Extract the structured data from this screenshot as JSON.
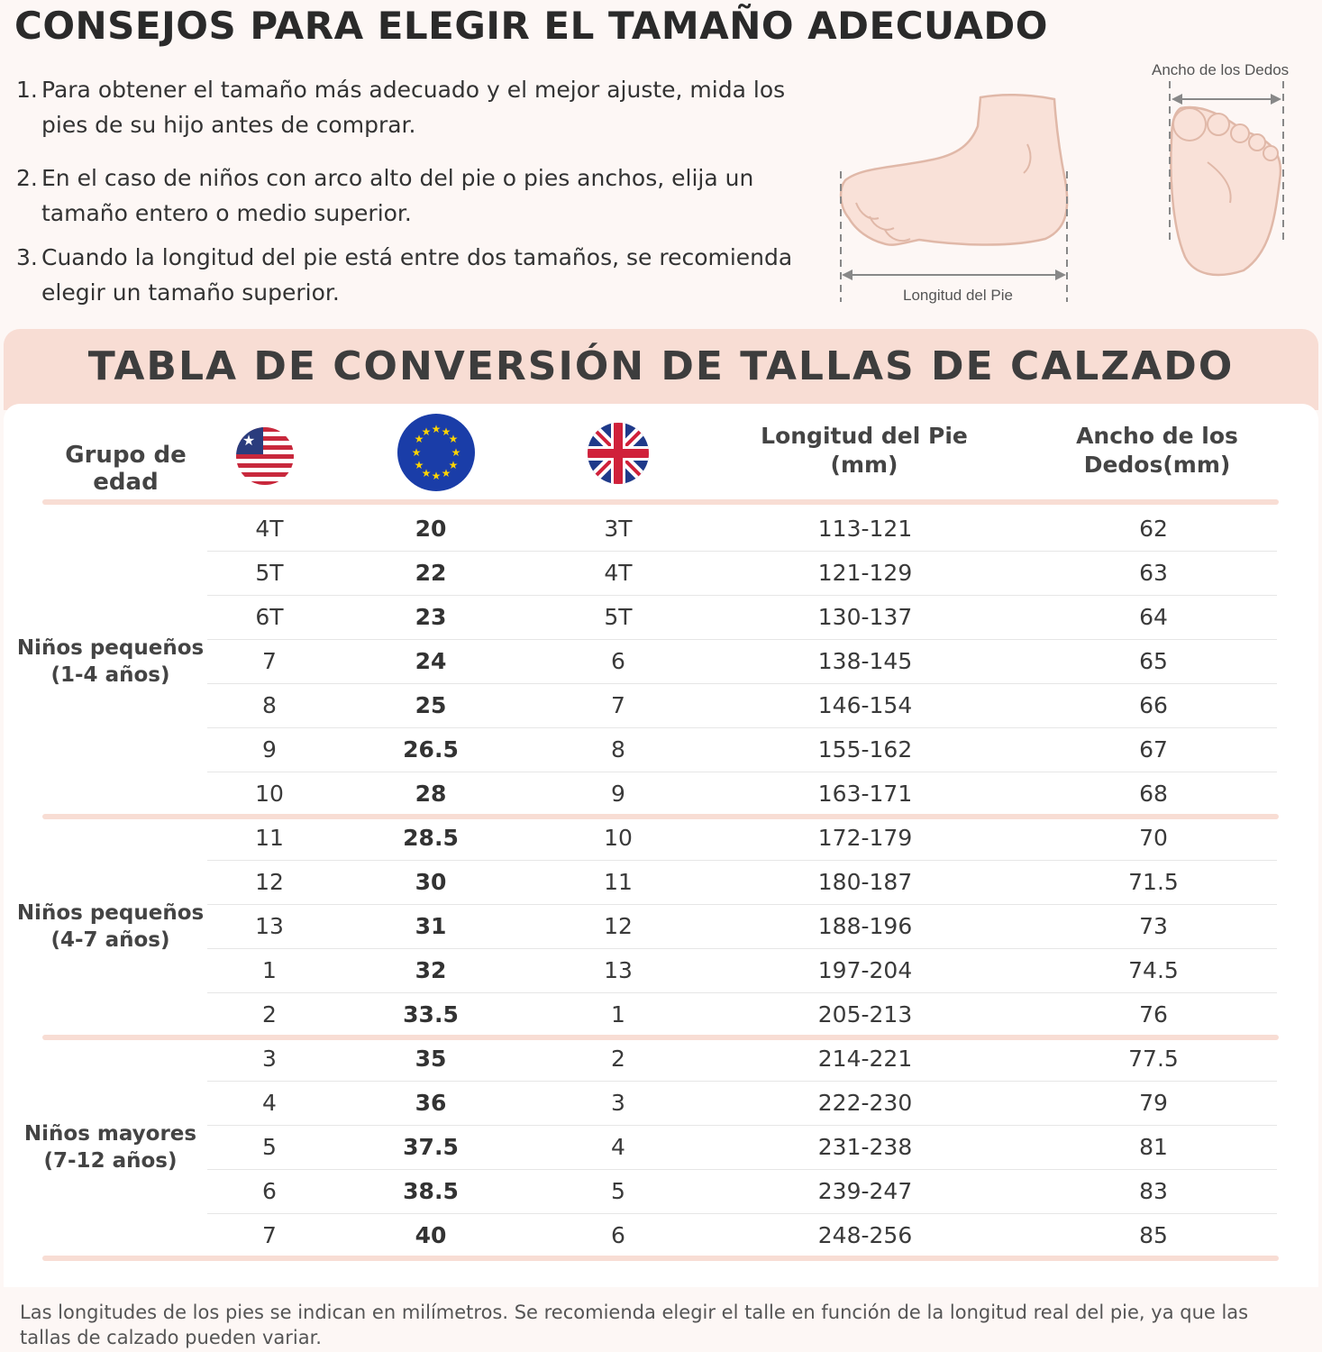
{
  "title": "CONSEJOS PARA ELEGIR EL TAMAÑO ADECUADO",
  "tips": [
    {
      "num": "1.",
      "text": "Para obtener el tamaño más adecuado y el mejor ajuste, mida los pies de su hijo antes de comprar."
    },
    {
      "num": "2.",
      "text": "En el caso de niños con arco alto del pie o pies anchos, elija un tamaño entero o medio superior."
    },
    {
      "num": "3.",
      "text": "Cuando la longitud del pie está entre dos tamaños, se recomienda elegir un tamaño superior."
    }
  ],
  "illustration": {
    "foot_length_label": "Longitud del Pie",
    "toe_width_label": "Ancho de los Dedos"
  },
  "table": {
    "heading": "TABLA DE CONVERSIÓN DE TALLAS DE CALZADO",
    "headers": {
      "age_group": "Grupo de edad",
      "us_flag": "us-flag-icon",
      "eu_flag": "eu-flag-icon",
      "uk_flag": "uk-flag-icon",
      "foot_length": "Longitud del Pie\n(mm)",
      "toe_width": "Ancho de los\nDedos(mm)"
    },
    "groups": [
      {
        "label": "Niños pequeños\n(1-4 años)",
        "rows": [
          [
            "4T",
            "20",
            "3T",
            "113-121",
            "62"
          ],
          [
            "5T",
            "22",
            "4T",
            "121-129",
            "63"
          ],
          [
            "6T",
            "23",
            "5T",
            "130-137",
            "64"
          ],
          [
            "7",
            "24",
            "6",
            "138-145",
            "65"
          ],
          [
            "8",
            "25",
            "7",
            "146-154",
            "66"
          ],
          [
            "9",
            "26.5",
            "8",
            "155-162",
            "67"
          ],
          [
            "10",
            "28",
            "9",
            "163-171",
            "68"
          ]
        ]
      },
      {
        "label": "Niños pequeños\n(4-7 años)",
        "rows": [
          [
            "11",
            "28.5",
            "10",
            "172-179",
            "70"
          ],
          [
            "12",
            "30",
            "11",
            "180-187",
            "71.5"
          ],
          [
            "13",
            "31",
            "12",
            "188-196",
            "73"
          ],
          [
            "1",
            "32",
            "13",
            "197-204",
            "74.5"
          ],
          [
            "2",
            "33.5",
            "1",
            "205-213",
            "76"
          ]
        ]
      },
      {
        "label": "Niños mayores\n(7-12 años)",
        "rows": [
          [
            "3",
            "35",
            "2",
            "214-221",
            "77.5"
          ],
          [
            "4",
            "36",
            "3",
            "222-230",
            "79"
          ],
          [
            "5",
            "37.5",
            "4",
            "231-238",
            "81"
          ],
          [
            "6",
            "38.5",
            "5",
            "239-247",
            "83"
          ],
          [
            "7",
            "40",
            "6",
            "248-256",
            "85"
          ]
        ]
      }
    ]
  },
  "note": "Las longitudes de los pies se indican en milímetros. Se recomienda elegir el talle en función de la longitud real del pie, ya que las tallas de calzado pueden variar.",
  "colors": {
    "accent_band": "#f8ddd4",
    "background": "#fdf7f5",
    "text": "#3a3a3a",
    "foot_fill": "#f9e1d8"
  }
}
